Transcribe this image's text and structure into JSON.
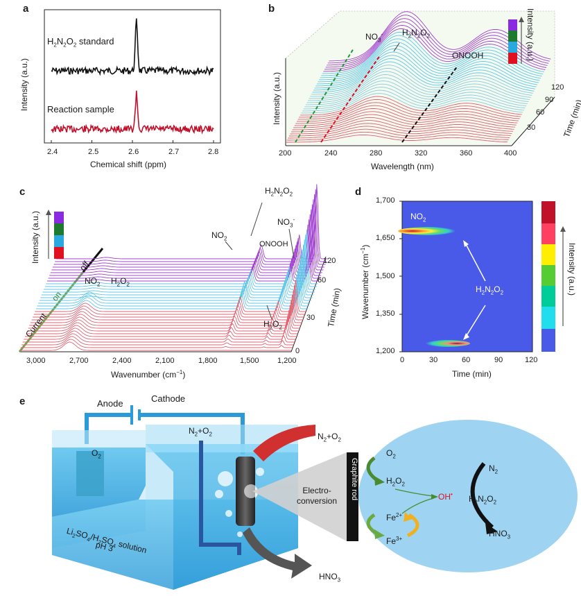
{
  "panel_labels": {
    "a": "a",
    "b": "b",
    "c": "c",
    "d": "d",
    "e": "e"
  },
  "chart_data": [
    {
      "panel": "a",
      "type": "line",
      "xlabel": "Chemical shift (ppm)",
      "ylabel": "Intensity (a.u.)",
      "xlim": [
        2.4,
        2.8
      ],
      "xticks": [
        "2.4",
        "2.5",
        "2.6",
        "2.7",
        "2.8"
      ],
      "series": [
        {
          "name": "H₂N₂O₂ standard",
          "color": "#111111",
          "peak_x": 2.61,
          "peak_height": 1.0
        },
        {
          "name": "Reaction sample",
          "color": "#c0102a",
          "peak_x": 2.61,
          "peak_height": 0.7
        }
      ]
    },
    {
      "panel": "b",
      "type": "line",
      "xlabel": "Wavelength (nm)",
      "ylabel": "Intensity (a.u.)",
      "zlabel": "Time (min)",
      "xlim": [
        200,
        400
      ],
      "xticks": [
        "200",
        "240",
        "280",
        "320",
        "360",
        "400"
      ],
      "zticks": [
        "30",
        "60",
        "90",
        "120"
      ],
      "annotations": [
        "NO3-",
        "H2N2O2",
        "ONOOH"
      ],
      "legend_title": "Intensity (a.u.)",
      "legend_colors": [
        "#8a2be2",
        "#1e7a2e",
        "#2aa8e0",
        "#e01020"
      ]
    },
    {
      "panel": "c",
      "type": "line",
      "xlabel": "Wavenumber (cm⁻¹)",
      "zlabel": "Time (min)",
      "xlim": [
        3150,
        1150
      ],
      "xticks": [
        "3,000",
        "2,700",
        "2,400",
        "2,100",
        "1,800",
        "1,500",
        "1,200"
      ],
      "zticks": [
        "0",
        "30",
        "60",
        "120"
      ],
      "legend_title": "Intensity (a.u.)",
      "legend_colors": [
        "#8a2be2",
        "#1e7a2e",
        "#2aa8e0",
        "#e01020"
      ],
      "current_labels": {
        "current": "Current",
        "on": "on",
        "off": "off"
      },
      "annotations": [
        "NO2",
        "H2N2O2",
        "ONOOH",
        "NO3-",
        "NO2",
        "H2O2",
        "H2O2"
      ]
    },
    {
      "panel": "d",
      "type": "heatmap",
      "xlabel": "Time (min)",
      "ylabel": "Wavenumber (cm⁻¹)",
      "xlim": [
        0,
        120
      ],
      "ylim": [
        1200,
        1700
      ],
      "xticks": [
        "0",
        "30",
        "60",
        "90",
        "120"
      ],
      "yticks": [
        "1,200",
        "1,350",
        "1,500",
        "1,650",
        "1,700"
      ],
      "spots": [
        {
          "label": "NO2",
          "y": 1680,
          "x_start": 0,
          "x_end": 60,
          "peak_x": 10
        },
        {
          "label": "H2N2O2",
          "y": 1230,
          "x_start": 15,
          "x_end": 60,
          "peak_x": 50
        }
      ],
      "colorbar_title": "Intensity (a.u.)",
      "colorbar_colors": [
        "#c0102a",
        "#ff4060",
        "#ffee00",
        "#55cc33",
        "#00cc99",
        "#22ddee",
        "#4a5ae8"
      ]
    }
  ],
  "text": {
    "a_std": "H2N2O2 standard",
    "a_rxn": "Reaction sample",
    "b_no3": "NO3",
    "b_h2n2o2": "H2N2O2",
    "b_onooh": "ONOOH",
    "c_no2_top": "NO2",
    "c_h2n2o2_top": "H2N2O2",
    "c_onooh": "ONOOH",
    "c_no3": "NO3",
    "c_no2_left": "NO2",
    "c_h2o2_left": "H2O2",
    "c_h2o2_right": "H2O2",
    "d_no2": "NO2",
    "d_h2n2o2": "H2N2O2",
    "e": {
      "anode": "Anode",
      "cathode": "Cathode",
      "o2": "O2",
      "n2o2_in": "N2+O2",
      "n2o2_out": "N2+O2",
      "solution_line1": "Li2SO4/H2SO4 solution",
      "solution_line2": "pH 3",
      "electroconversion": "Electro-\nconversion",
      "graphite_rod": "Graphite rod",
      "hno3_out": "HNO3",
      "cycle_o2": "O2",
      "cycle_h2o2": "H2O2",
      "cycle_fe2": "Fe2+",
      "cycle_fe3": "Fe3+",
      "oh_radical": "OH",
      "n2": "N2",
      "h2n2o2": "H2N2O2",
      "hno3": "HNO3"
    }
  }
}
